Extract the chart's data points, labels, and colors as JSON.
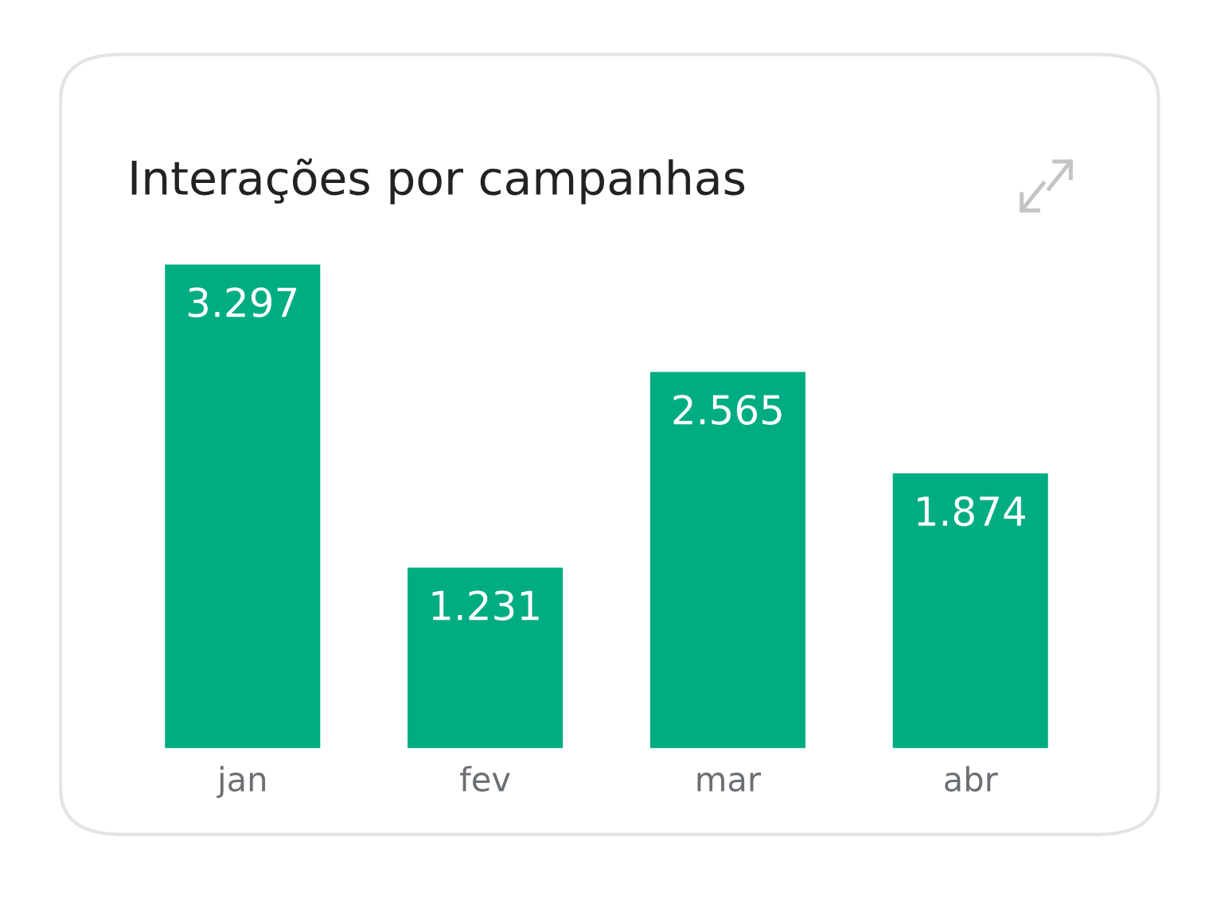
{
  "chart_data": {
    "type": "bar",
    "title": "Interações por campanhas",
    "categories": [
      "jan",
      "fev",
      "mar",
      "abr"
    ],
    "values": [
      3297,
      1231,
      2565,
      1874
    ],
    "value_labels": [
      "3.297",
      "1.231",
      "2.565",
      "1.874"
    ],
    "color": "#00ac82",
    "grid": false,
    "legend": false
  }
}
